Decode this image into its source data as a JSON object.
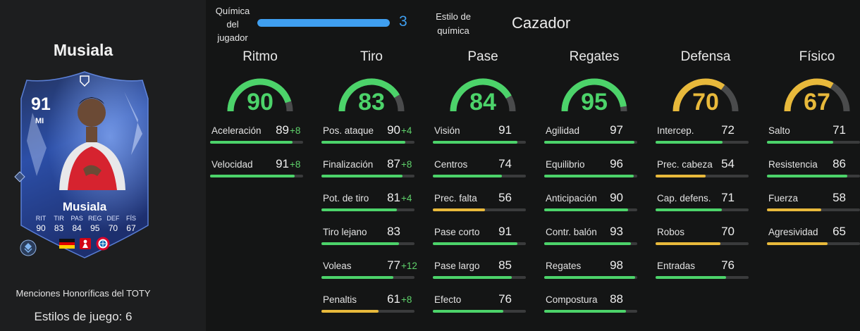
{
  "colors": {
    "green": "#4cd36a",
    "yellow": "#e8b93b",
    "blue": "#3f9ff0",
    "track": "#3a3b3c"
  },
  "player": {
    "name": "Musiala",
    "card": {
      "rating": "91",
      "position": "MI",
      "name": "Musiala",
      "stats": [
        {
          "label": "RIT",
          "value": "90"
        },
        {
          "label": "TIR",
          "value": "83"
        },
        {
          "label": "PAS",
          "value": "84"
        },
        {
          "label": "REG",
          "value": "95"
        },
        {
          "label": "DEF",
          "value": "70"
        },
        {
          "label": "FÍS",
          "value": "67"
        }
      ],
      "icons": [
        "germany-flag-icon",
        "bundesliga-icon",
        "bayern-badge-icon",
        "playstyle-icon"
      ]
    },
    "honor": "Menciones Honoríficas del TOTY",
    "playstyles": "Estilos de juego: 6"
  },
  "header": {
    "chemistry_label": "Química del jugador",
    "chemistry_value": "3",
    "chemistry_fill": 1.0,
    "style_label": "Estilo de química",
    "style_value": "Cazador"
  },
  "columns": [
    {
      "title": "Ritmo",
      "value": "90",
      "color": "green",
      "attrs": [
        {
          "name": "Aceleración",
          "value": "89",
          "bonus": "+8",
          "color": "green"
        },
        {
          "name": "Velocidad",
          "value": "91",
          "bonus": "+8",
          "color": "green"
        }
      ]
    },
    {
      "title": "Tiro",
      "value": "83",
      "color": "green",
      "attrs": [
        {
          "name": "Pos. ataque",
          "value": "90",
          "bonus": "+4",
          "color": "green"
        },
        {
          "name": "Finalización",
          "value": "87",
          "bonus": "+8",
          "color": "green"
        },
        {
          "name": "Pot. de tiro",
          "value": "81",
          "bonus": "+4",
          "color": "green"
        },
        {
          "name": "Tiro lejano",
          "value": "83",
          "bonus": "",
          "color": "green"
        },
        {
          "name": "Voleas",
          "value": "77",
          "bonus": "+12",
          "color": "green"
        },
        {
          "name": "Penaltis",
          "value": "61",
          "bonus": "+8",
          "color": "yellow"
        }
      ]
    },
    {
      "title": "Pase",
      "value": "84",
      "color": "green",
      "attrs": [
        {
          "name": "Visión",
          "value": "91",
          "bonus": "",
          "color": "green"
        },
        {
          "name": "Centros",
          "value": "74",
          "bonus": "",
          "color": "green"
        },
        {
          "name": "Prec. falta",
          "value": "56",
          "bonus": "",
          "color": "yellow"
        },
        {
          "name": "Pase corto",
          "value": "91",
          "bonus": "",
          "color": "green"
        },
        {
          "name": "Pase largo",
          "value": "85",
          "bonus": "",
          "color": "green"
        },
        {
          "name": "Efecto",
          "value": "76",
          "bonus": "",
          "color": "green"
        }
      ]
    },
    {
      "title": "Regates",
      "value": "95",
      "color": "green",
      "attrs": [
        {
          "name": "Agilidad",
          "value": "97",
          "bonus": "",
          "color": "green"
        },
        {
          "name": "Equilibrio",
          "value": "96",
          "bonus": "",
          "color": "green"
        },
        {
          "name": "Anticipación",
          "value": "90",
          "bonus": "",
          "color": "green"
        },
        {
          "name": "Contr. balón",
          "value": "93",
          "bonus": "",
          "color": "green"
        },
        {
          "name": "Regates",
          "value": "98",
          "bonus": "",
          "color": "green"
        },
        {
          "name": "Compostura",
          "value": "88",
          "bonus": "",
          "color": "green"
        }
      ]
    },
    {
      "title": "Defensa",
      "value": "70",
      "color": "yellow",
      "attrs": [
        {
          "name": "Intercep.",
          "value": "72",
          "bonus": "",
          "color": "green"
        },
        {
          "name": "Prec. cabeza",
          "value": "54",
          "bonus": "",
          "color": "yellow"
        },
        {
          "name": "Cap. defens.",
          "value": "71",
          "bonus": "",
          "color": "green"
        },
        {
          "name": "Robos",
          "value": "70",
          "bonus": "",
          "color": "yellow"
        },
        {
          "name": "Entradas",
          "value": "76",
          "bonus": "",
          "color": "green"
        }
      ]
    },
    {
      "title": "Físico",
      "value": "67",
      "color": "yellow",
      "attrs": [
        {
          "name": "Salto",
          "value": "71",
          "bonus": "",
          "color": "green"
        },
        {
          "name": "Resistencia",
          "value": "86",
          "bonus": "",
          "color": "green"
        },
        {
          "name": "Fuerza",
          "value": "58",
          "bonus": "",
          "color": "yellow"
        },
        {
          "name": "Agresividad",
          "value": "65",
          "bonus": "",
          "color": "yellow"
        }
      ]
    }
  ]
}
